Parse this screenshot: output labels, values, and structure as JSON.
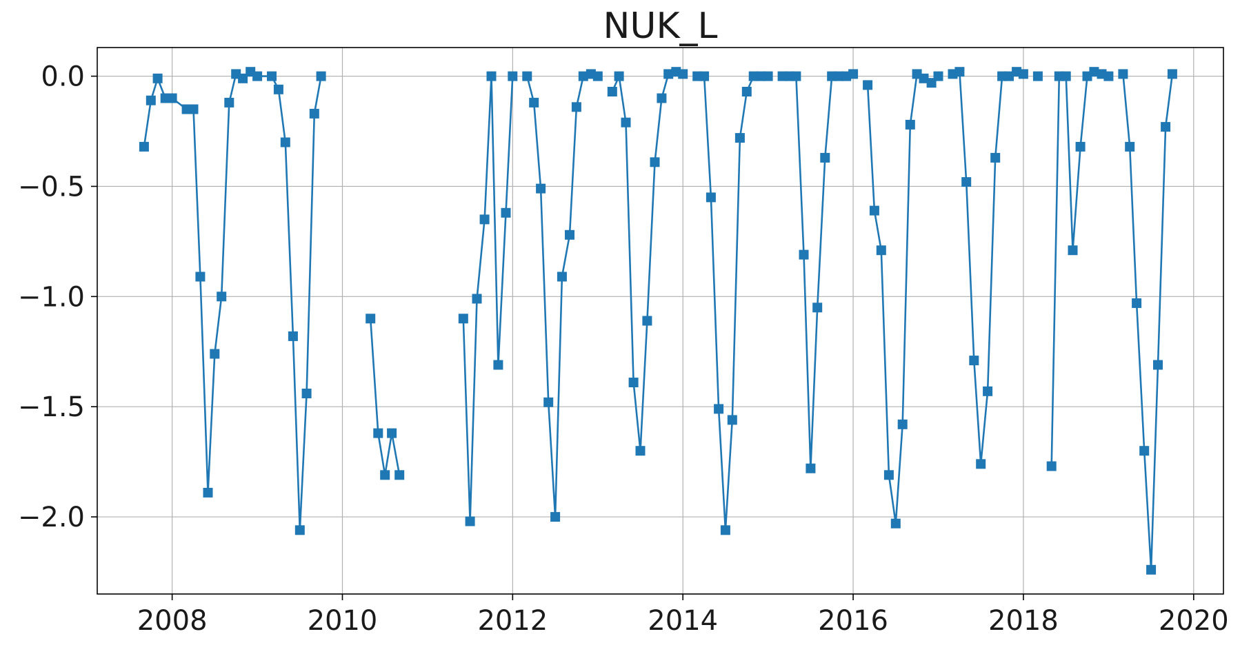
{
  "chart_data": {
    "type": "line",
    "title": "NUK_L",
    "xlabel": "",
    "ylabel": "",
    "xlim": [
      2007.12,
      2020.35
    ],
    "ylim": [
      -2.35,
      0.13
    ],
    "x_ticks": [
      2008,
      2010,
      2012,
      2014,
      2016,
      2018,
      2020
    ],
    "x_tick_labels": [
      "2008",
      "2010",
      "2012",
      "2014",
      "2016",
      "2018",
      "2020"
    ],
    "y_ticks": [
      0.0,
      -0.5,
      -1.0,
      -1.5,
      -2.0
    ],
    "y_tick_labels": [
      "0.0",
      "−0.5",
      "−1.0",
      "−1.5",
      "−2.0"
    ],
    "grid": true,
    "legend": "none",
    "marker": "square",
    "color": "#1f77b4",
    "series": [
      {
        "segments": [
          [
            [
              2007.67,
              -0.32
            ],
            [
              2007.75,
              -0.11
            ],
            [
              2007.83,
              -0.01
            ],
            [
              2007.92,
              -0.1
            ],
            [
              2008.0,
              -0.1
            ],
            [
              2008.17,
              -0.15
            ],
            [
              2008.25,
              -0.15
            ],
            [
              2008.33,
              -0.91
            ],
            [
              2008.42,
              -1.89
            ],
            [
              2008.5,
              -1.26
            ],
            [
              2008.58,
              -1.0
            ],
            [
              2008.67,
              -0.12
            ],
            [
              2008.75,
              0.01
            ],
            [
              2008.83,
              -0.01
            ],
            [
              2008.92,
              0.02
            ],
            [
              2009.0,
              0.0
            ],
            [
              2009.17,
              0.0
            ],
            [
              2009.25,
              -0.06
            ],
            [
              2009.33,
              -0.3
            ],
            [
              2009.42,
              -1.18
            ],
            [
              2009.5,
              -2.06
            ],
            [
              2009.58,
              -1.44
            ],
            [
              2009.67,
              -0.17
            ],
            [
              2009.75,
              0.0
            ]
          ],
          [
            [
              2010.33,
              -1.1
            ],
            [
              2010.42,
              -1.62
            ],
            [
              2010.5,
              -1.81
            ],
            [
              2010.58,
              -1.62
            ],
            [
              2010.67,
              -1.81
            ]
          ],
          [
            [
              2011.42,
              -1.1
            ],
            [
              2011.5,
              -2.02
            ],
            [
              2011.58,
              -1.01
            ],
            [
              2011.67,
              -0.65
            ],
            [
              2011.75,
              0.0
            ],
            [
              2011.83,
              -1.31
            ],
            [
              2011.92,
              -0.62
            ],
            [
              2012.0,
              0.0
            ]
          ],
          [
            [
              2012.17,
              0.0
            ],
            [
              2012.25,
              -0.12
            ],
            [
              2012.33,
              -0.51
            ],
            [
              2012.42,
              -1.48
            ],
            [
              2012.5,
              -2.0
            ],
            [
              2012.58,
              -0.91
            ],
            [
              2012.67,
              -0.72
            ],
            [
              2012.75,
              -0.14
            ],
            [
              2012.83,
              0.0
            ],
            [
              2012.92,
              0.01
            ],
            [
              2013.0,
              0.0
            ]
          ],
          [
            [
              2013.17,
              -0.07
            ],
            [
              2013.25,
              0.0
            ],
            [
              2013.33,
              -0.21
            ],
            [
              2013.42,
              -1.39
            ],
            [
              2013.5,
              -1.7
            ],
            [
              2013.58,
              -1.11
            ],
            [
              2013.67,
              -0.39
            ],
            [
              2013.75,
              -0.1
            ],
            [
              2013.83,
              0.01
            ],
            [
              2013.92,
              0.02
            ],
            [
              2014.0,
              0.01
            ]
          ],
          [
            [
              2014.17,
              0.0
            ],
            [
              2014.25,
              0.0
            ],
            [
              2014.33,
              -0.55
            ],
            [
              2014.42,
              -1.51
            ],
            [
              2014.5,
              -2.06
            ],
            [
              2014.58,
              -1.56
            ],
            [
              2014.67,
              -0.28
            ],
            [
              2014.75,
              -0.07
            ],
            [
              2014.83,
              0.0
            ],
            [
              2014.92,
              0.0
            ],
            [
              2015.0,
              0.0
            ]
          ],
          [
            [
              2015.17,
              0.0
            ],
            [
              2015.25,
              0.0
            ],
            [
              2015.33,
              0.0
            ],
            [
              2015.42,
              -0.81
            ],
            [
              2015.5,
              -1.78
            ],
            [
              2015.58,
              -1.05
            ],
            [
              2015.67,
              -0.37
            ],
            [
              2015.75,
              0.0
            ],
            [
              2015.83,
              0.0
            ],
            [
              2015.92,
              0.0
            ],
            [
              2016.0,
              0.01
            ]
          ],
          [
            [
              2016.17,
              -0.04
            ],
            [
              2016.25,
              -0.61
            ],
            [
              2016.33,
              -0.79
            ],
            [
              2016.42,
              -1.81
            ],
            [
              2016.5,
              -2.03
            ],
            [
              2016.58,
              -1.58
            ],
            [
              2016.67,
              -0.22
            ],
            [
              2016.75,
              0.01
            ],
            [
              2016.83,
              -0.01
            ],
            [
              2016.92,
              -0.03
            ],
            [
              2017.0,
              0.0
            ]
          ],
          [
            [
              2017.17,
              0.01
            ],
            [
              2017.25,
              0.02
            ],
            [
              2017.33,
              -0.48
            ],
            [
              2017.42,
              -1.29
            ],
            [
              2017.5,
              -1.76
            ],
            [
              2017.58,
              -1.43
            ],
            [
              2017.67,
              -0.37
            ],
            [
              2017.75,
              0.0
            ],
            [
              2017.83,
              0.0
            ],
            [
              2017.92,
              0.02
            ],
            [
              2018.0,
              0.01
            ]
          ],
          [
            [
              2018.17,
              0.0
            ]
          ],
          [
            [
              2018.33,
              -1.77
            ],
            [
              2018.42,
              0.0
            ],
            [
              2018.5,
              0.0
            ],
            [
              2018.58,
              -0.79
            ],
            [
              2018.67,
              -0.32
            ],
            [
              2018.75,
              0.0
            ],
            [
              2018.83,
              0.02
            ],
            [
              2018.92,
              0.01
            ],
            [
              2019.0,
              0.0
            ]
          ],
          [
            [
              2019.17,
              0.01
            ],
            [
              2019.25,
              -0.32
            ],
            [
              2019.33,
              -1.03
            ],
            [
              2019.42,
              -1.7
            ],
            [
              2019.5,
              -2.24
            ],
            [
              2019.58,
              -1.31
            ],
            [
              2019.67,
              -0.23
            ],
            [
              2019.75,
              0.01
            ]
          ]
        ]
      }
    ]
  }
}
